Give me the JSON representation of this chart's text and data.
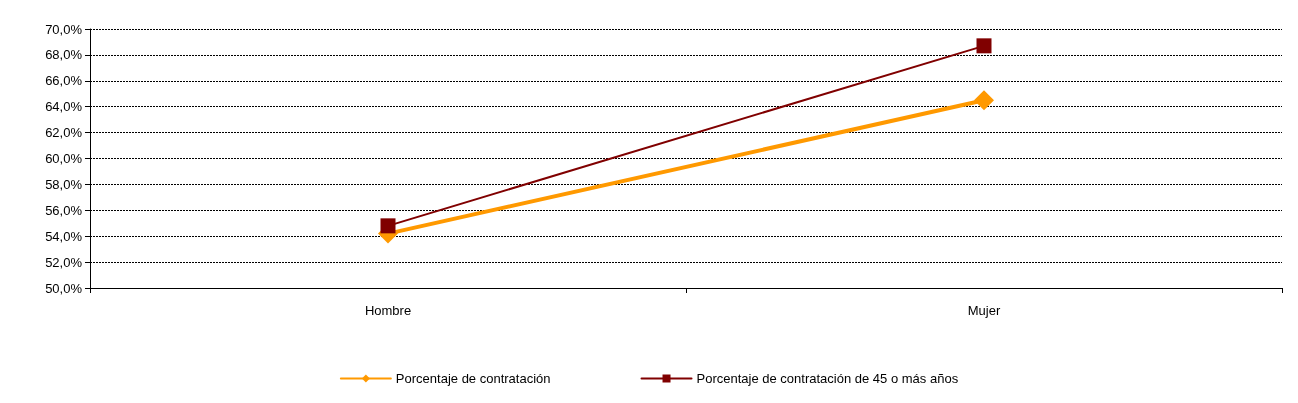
{
  "chart_data": {
    "type": "line",
    "categories": [
      "Hombre",
      "Mujer"
    ],
    "series": [
      {
        "name": "Porcentaje de contratación",
        "color": "#ff9900",
        "values": [
          54.2,
          64.5
        ],
        "marker": "diamond"
      },
      {
        "name": "Porcentaje de contratación de 45 o más años",
        "color": "#800000",
        "values": [
          54.8,
          68.7
        ],
        "marker": "square"
      }
    ],
    "ylim": [
      50,
      70
    ],
    "yticks": [
      {
        "value": 50,
        "label": "50,0%"
      },
      {
        "value": 52,
        "label": "52,0%"
      },
      {
        "value": 54,
        "label": "54,0%"
      },
      {
        "value": 56,
        "label": "56,0%"
      },
      {
        "value": 58,
        "label": "58,0%"
      },
      {
        "value": 60,
        "label": "60,0%"
      },
      {
        "value": 62,
        "label": "62,0%"
      },
      {
        "value": 64,
        "label": "64,0%"
      },
      {
        "value": 66,
        "label": "66,0%"
      },
      {
        "value": 68,
        "label": "68,0%"
      },
      {
        "value": 70,
        "label": "70,0%"
      }
    ],
    "grid": "y",
    "legend": "bottom",
    "line_style": "solid"
  }
}
